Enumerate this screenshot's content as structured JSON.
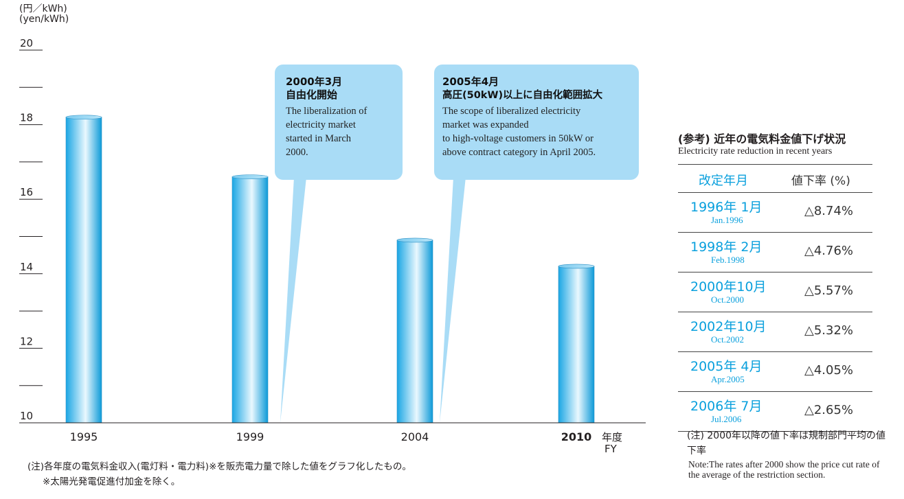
{
  "chart_data": {
    "type": "bar",
    "unit_jp": "(円／kWh)",
    "unit_en": "(yen/kWh)",
    "categories": [
      "1995",
      "1999",
      "2004",
      "2010"
    ],
    "values": [
      18.2,
      16.6,
      14.9,
      14.2
    ],
    "highlight_category": "2010",
    "xlabel_jp": "年度",
    "xlabel_en": "FY",
    "ylim": [
      10,
      20
    ],
    "yticks": [
      "10",
      "12",
      "14",
      "16",
      "18",
      "20"
    ],
    "bar_gradient": [
      "#1aa6e4",
      "#eaf8fe",
      "#0d9ad8"
    ]
  },
  "callouts": [
    {
      "date": "2000年3月",
      "title": "自由化開始",
      "lines": [
        "The liberalization of",
        "electricity market",
        "started in March",
        "2000."
      ]
    },
    {
      "date": "2005年4月",
      "title": "高圧(50kW)以上に自由化範囲拡大",
      "lines": [
        "The scope of liberalized electricity",
        "market was expanded",
        "to high-voltage customers in 50kW or",
        "above contract category in April 2005."
      ]
    }
  ],
  "notes": {
    "line1": "(注)各年度の電気料金収入(電灯料・電力料)※を販売電力量で除した値をグラフ化したもの。",
    "line2": "※太陽光発電促進付加金を除く。"
  },
  "panel": {
    "title": "(参考) 近年の電気料金値下げ状況",
    "subtitle": "Electricity rate reduction in recent years",
    "col1": "改定年月",
    "col2": "値下率 (%)",
    "rows": [
      {
        "date": "1996年  1月",
        "en": "Jan.1996",
        "rate": "△8.74%"
      },
      {
        "date": "1998年  2月",
        "en": "Feb.1998",
        "rate": "△4.76%"
      },
      {
        "date": "2000年10月",
        "en": "Oct.2000",
        "rate": "△5.57%"
      },
      {
        "date": "2002年10月",
        "en": "Oct.2002",
        "rate": "△5.32%"
      },
      {
        "date": "2005年  4月",
        "en": "Apr.2005",
        "rate": "△4.05%"
      },
      {
        "date": "2006年  7月",
        "en": "Jul.2006",
        "rate": "△2.65%"
      }
    ],
    "note_jp": "(注) 2000年以降の値下率は規制部門平均の値下率",
    "note_en": "Note:The rates after 2000 show the price cut rate of the average of the restriction section."
  }
}
